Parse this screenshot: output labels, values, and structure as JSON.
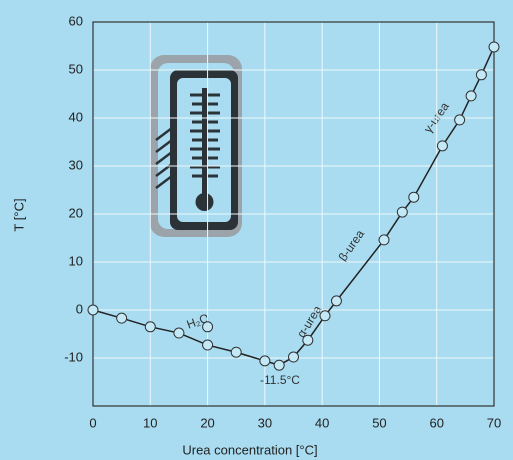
{
  "chart_data": {
    "type": "line",
    "xlabel": "Urea concentration [°C]",
    "ylabel": "T [°C]",
    "x": [
      0,
      5,
      10,
      15,
      20,
      25,
      30,
      32.5,
      35,
      37.5,
      40.5,
      42.5,
      50.8,
      54,
      56,
      61,
      64,
      66,
      67.8,
      70
    ],
    "series": [
      {
        "color": "#222222",
        "values": [
          0,
          -1.7,
          -3.5,
          -4.8,
          -7.3,
          -8.8,
          -10.6,
          -11.5,
          -9.8,
          -6.3,
          -1.2,
          1.9,
          14.6,
          20.4,
          23.5,
          34.2,
          39.6,
          44.6,
          49,
          54.8
        ]
      }
    ],
    "extra_points": {
      "x": [
        20
      ],
      "values": [
        -3.5
      ]
    },
    "xlim": [
      0,
      70
    ],
    "ylim": [
      -20,
      60
    ],
    "xticks": [
      0,
      10,
      20,
      30,
      40,
      50,
      60,
      70
    ],
    "yticks": [
      -10,
      0,
      10,
      20,
      30,
      40,
      50,
      60
    ],
    "grid": true,
    "annotations": [
      "H₂O",
      "α-urea",
      "β-urea",
      "γ-urea",
      "-11.5°C"
    ]
  }
}
